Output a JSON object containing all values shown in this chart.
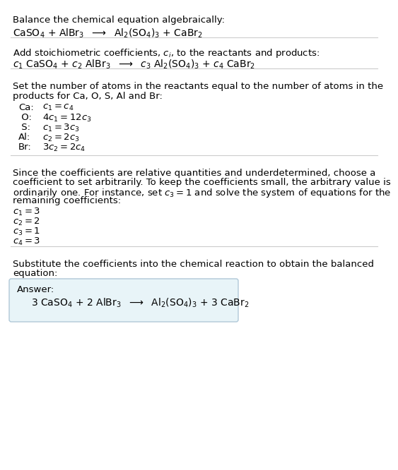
{
  "bg_color": "#ffffff",
  "text_color": "#000000",
  "font_size": 9.5,
  "font_size_eq": 10,
  "answer_box_color": "#e8f4f8",
  "answer_box_edge": "#b0c8d8",
  "line_color": "#cccccc",
  "sections": {
    "s1_line1": "Balance the chemical equation algebraically:",
    "s1_eq": "CaSO$_4$ + AlBr$_3$  $\\longrightarrow$  Al$_2$(SO$_4$)$_3$ + CaBr$_2$",
    "s2_line1": "Add stoichiometric coefficients, $c_i$, to the reactants and products:",
    "s2_eq": "$c_1$ CaSO$_4$ + $c_2$ AlBr$_3$  $\\longrightarrow$  $c_3$ Al$_2$(SO$_4$)$_3$ + $c_4$ CaBr$_2$",
    "s3_header1": "Set the number of atoms in the reactants equal to the number of atoms in the",
    "s3_header2": "products for Ca, O, S, Al and Br:",
    "s3_equations": [
      [
        "Ca:",
        "$c_1 = c_4$"
      ],
      [
        " O:",
        "$4 c_1 = 12 c_3$"
      ],
      [
        " S:",
        "$c_1 = 3 c_3$"
      ],
      [
        "Al:",
        "$c_2 = 2 c_3$"
      ],
      [
        "Br:",
        "$3 c_2 = 2 c_4$"
      ]
    ],
    "s4_line1": "Since the coefficients are relative quantities and underdetermined, choose a",
    "s4_line2": "coefficient to set arbitrarily. To keep the coefficients small, the arbitrary value is",
    "s4_line3": "ordinarily one. For instance, set $c_3 = 1$ and solve the system of equations for the",
    "s4_line4": "remaining coefficients:",
    "s4_coeffs": [
      "$c_1 = 3$",
      "$c_2 = 2$",
      "$c_3 = 1$",
      "$c_4 = 3$"
    ],
    "s5_line1": "Substitute the coefficients into the chemical reaction to obtain the balanced",
    "s5_line2": "equation:",
    "answer_label": "Answer:",
    "answer_eq": "3 CaSO$_4$ + 2 AlBr$_3$  $\\longrightarrow$  Al$_2$(SO$_4$)$_3$ + 3 CaBr$_2$"
  }
}
